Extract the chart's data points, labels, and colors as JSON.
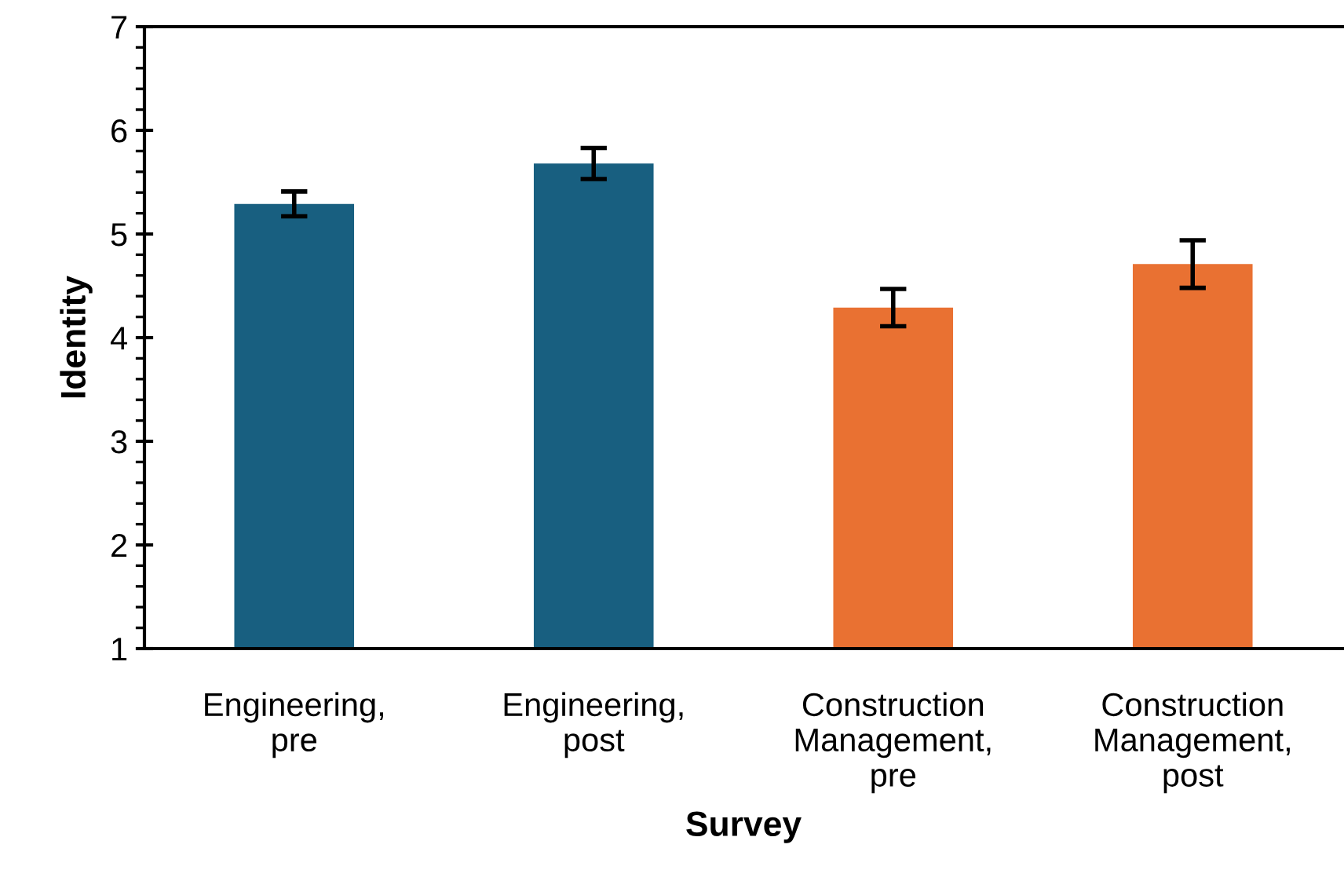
{
  "chart_data": {
    "type": "bar",
    "xlabel": "Survey",
    "ylabel": "Identity",
    "categories": [
      "Engineering,\npre",
      "Engineering,\npost",
      "Construction\nManagement,\npre",
      "Construction\nManagement,\npost"
    ],
    "values": [
      5.29,
      5.68,
      4.29,
      4.71
    ],
    "errors": [
      0.12,
      0.15,
      0.18,
      0.23
    ],
    "colors": [
      "#185f80",
      "#185f80",
      "#e97132",
      "#e97132"
    ],
    "ylim": [
      1,
      7
    ],
    "yticks": [
      1,
      {
        "value": 1.2,
        "label": null
      },
      {
        "value": 1.4,
        "label": null
      },
      {
        "value": 1.6,
        "label": null
      },
      {
        "value": 1.8,
        "label": null
      },
      2,
      {
        "value": 2.2,
        "label": null
      },
      {
        "value": 2.4,
        "label": null
      },
      {
        "value": 2.6,
        "label": null
      },
      {
        "value": 2.8,
        "label": null
      },
      3,
      {
        "value": 3.2,
        "label": null
      },
      {
        "value": 3.4,
        "label": null
      },
      {
        "value": 3.6,
        "label": null
      },
      {
        "value": 3.8,
        "label": null
      },
      4,
      {
        "value": 4.2,
        "label": null
      },
      {
        "value": 4.4,
        "label": null
      },
      {
        "value": 4.6,
        "label": null
      },
      {
        "value": 4.8,
        "label": null
      },
      5,
      {
        "value": 5.2,
        "label": null
      },
      {
        "value": 5.4,
        "label": null
      },
      {
        "value": 5.6,
        "label": null
      },
      {
        "value": 5.8,
        "label": null
      },
      6,
      {
        "value": 6.2,
        "label": null
      },
      {
        "value": 6.4,
        "label": null
      },
      {
        "value": 6.6,
        "label": null
      },
      {
        "value": 6.8,
        "label": null
      },
      7
    ],
    "grid": false
  }
}
